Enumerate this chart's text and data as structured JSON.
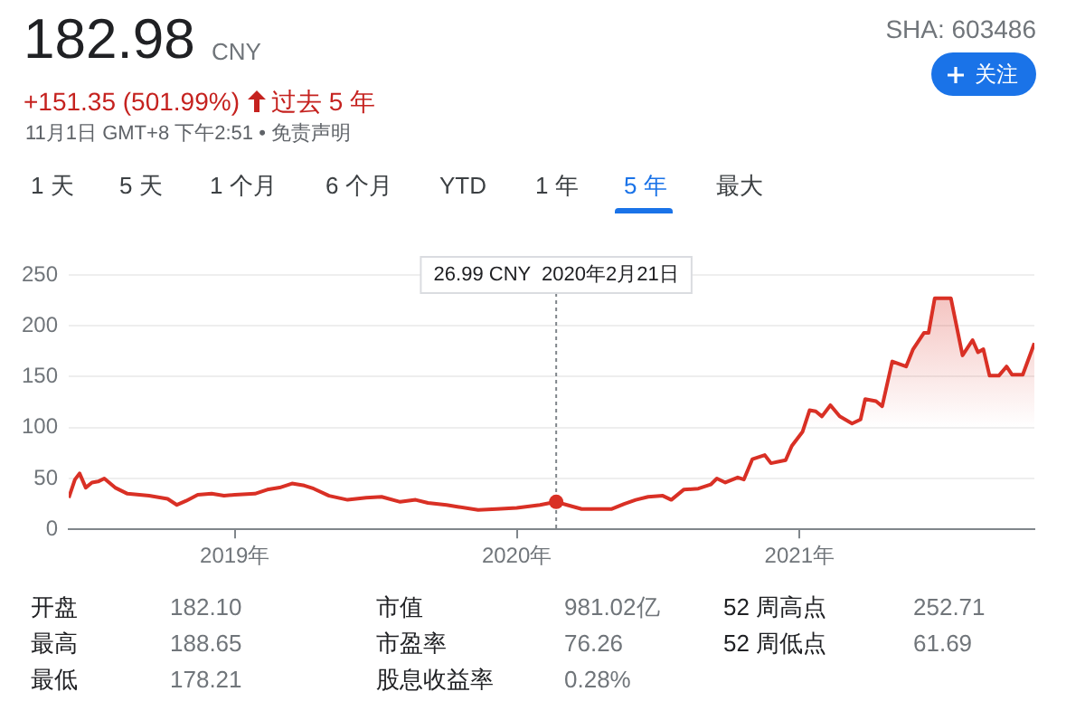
{
  "chart_data": {
    "type": "area",
    "title": "182.98",
    "subtitle": "+151.35 (501.99%)",
    "annotations": [
      "CNY",
      "过去 5 年",
      "11月1日 GMT+8 下午2:51 • 免责声明",
      "SHA: 603486",
      "关注",
      "1 天",
      "5 天",
      "1 个月",
      "6 个月",
      "YTD",
      "1 年",
      "5 年",
      "最大",
      "开盘",
      "182.10",
      "最高",
      "188.65",
      "最低",
      "178.21",
      "市值",
      "981.02亿",
      "市盈率",
      "76.26",
      "股息收益率",
      "0.28%",
      "52 周高点",
      "252.71",
      "52 周低点",
      "61.69"
    ],
    "x": [
      "2018-05-31",
      "2018-06-08",
      "2018-06-14",
      "2018-06-22",
      "2018-06-30",
      "2018-07-08",
      "2018-07-16",
      "2018-07-30",
      "2018-08-15",
      "2018-09-12",
      "2018-10-06",
      "2018-10-18",
      "2018-10-30",
      "2018-11-14",
      "2018-12-02",
      "2018-12-18",
      "2019-01-01",
      "2019-01-27",
      "2019-02-12",
      "2019-02-28",
      "2019-03-16",
      "2019-04-01",
      "2019-04-13",
      "2019-05-03",
      "2019-05-27",
      "2019-06-20",
      "2019-07-10",
      "2019-08-03",
      "2019-08-23",
      "2019-09-08",
      "2019-10-02",
      "2019-10-18",
      "2019-11-12",
      "2019-12-06",
      "2020-01-01",
      "2020-01-31",
      "2020-02-21",
      "2020-03-06",
      "2020-03-25",
      "2020-05-03",
      "2020-05-19",
      "2020-06-03",
      "2020-06-19",
      "2020-07-08",
      "2020-07-19",
      "2020-08-04",
      "2020-08-23",
      "2020-09-08",
      "2020-09-16",
      "2020-09-27",
      "2020-10-13",
      "2020-10-21",
      "2020-11-01",
      "2020-11-17",
      "2020-11-25",
      "2020-12-14",
      "2020-12-22",
      "2021-01-05",
      "2021-01-14",
      "2021-01-22",
      "2021-01-30",
      "2021-02-10",
      "2021-02-22",
      "2021-03-10",
      "2021-03-21",
      "2021-03-27",
      "2021-04-10",
      "2021-04-18",
      "2021-05-01",
      "2021-05-19",
      "2021-05-28",
      "2021-06-11",
      "2021-06-17",
      "2021-06-25",
      "2021-07-16",
      "2021-07-31",
      "2021-08-13",
      "2021-08-20",
      "2021-08-27",
      "2021-09-04",
      "2021-09-16",
      "2021-09-26",
      "2021-10-03",
      "2021-10-17",
      "2021-11-01"
    ],
    "series": [
      {
        "color": "#d93025",
        "values": [
          31,
          49,
          55,
          41,
          46,
          47,
          50,
          41,
          35,
          33,
          30,
          24,
          28,
          34,
          35,
          33,
          34,
          35,
          39,
          41,
          45,
          43,
          40,
          33,
          29,
          31,
          32,
          27,
          29,
          26,
          24,
          22,
          19,
          20,
          21,
          24,
          27,
          24,
          20,
          20,
          25,
          29,
          32,
          33,
          29,
          39,
          40,
          44,
          50,
          46,
          51,
          49,
          69,
          73,
          65,
          68,
          82,
          96,
          117,
          116,
          111,
          122,
          111,
          104,
          108,
          128,
          126,
          121,
          165,
          160,
          177,
          193,
          193,
          227,
          227,
          171,
          186,
          174,
          177,
          151,
          151,
          160,
          152,
          152,
          183
        ]
      }
    ],
    "xlim": [
      "2018-05-31",
      "2021-11-01"
    ],
    "xticks": [
      {
        "value": "2019-01-01",
        "label": "2019年"
      },
      {
        "value": "2020-01-01",
        "label": "2020年"
      },
      {
        "value": "2021-01-01",
        "label": "2021年"
      }
    ],
    "ref_lines": [
      {
        "axis": "x",
        "value": "2020-02-21",
        "label": "26.99 CNY  2020年2月21日",
        "color": "#80868b",
        "line_style": "dashed"
      }
    ],
    "ylim": [
      0,
      250
    ],
    "yticks": [
      0,
      50,
      100,
      150,
      200,
      250
    ],
    "grid": "y",
    "legend": false,
    "marker": "none",
    "line_style": "solid"
  }
}
